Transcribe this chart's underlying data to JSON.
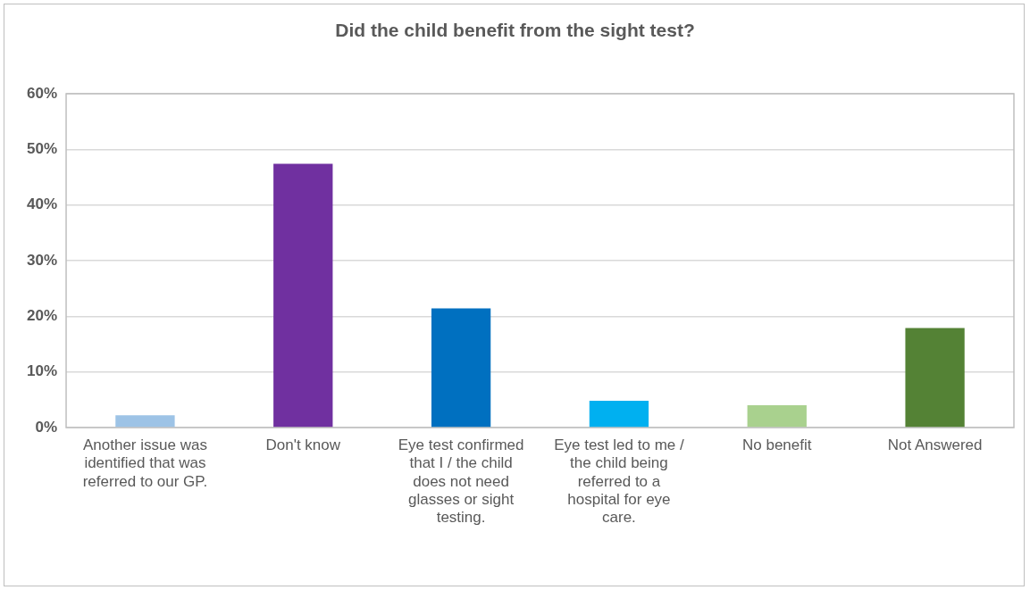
{
  "chart_data": {
    "type": "bar",
    "title": "Did the child benefit from the sight test?",
    "categories": [
      "Another issue was identified that was referred to our GP.",
      "Don't know",
      "Eye test confirmed that I / the child does not need glasses or sight testing.",
      "Eye test led to me / the child being referred to a hospital for eye care.",
      "No benefit",
      "Not Answered"
    ],
    "values": [
      2.2,
      47.4,
      21.4,
      4.8,
      4.0,
      17.9
    ],
    "colors": [
      "#9dc3e6",
      "#7030a0",
      "#0070c0",
      "#00b0f0",
      "#a9d18e",
      "#548235"
    ],
    "ylim": [
      0,
      60
    ],
    "yticks": [
      {
        "value": 0,
        "label": "0%"
      },
      {
        "value": 10,
        "label": "10%"
      },
      {
        "value": 20,
        "label": "20%"
      },
      {
        "value": 30,
        "label": "30%"
      },
      {
        "value": 40,
        "label": "40%"
      },
      {
        "value": 50,
        "label": "50%"
      },
      {
        "value": 60,
        "label": "60%"
      }
    ],
    "grid": "y",
    "legend": false
  }
}
